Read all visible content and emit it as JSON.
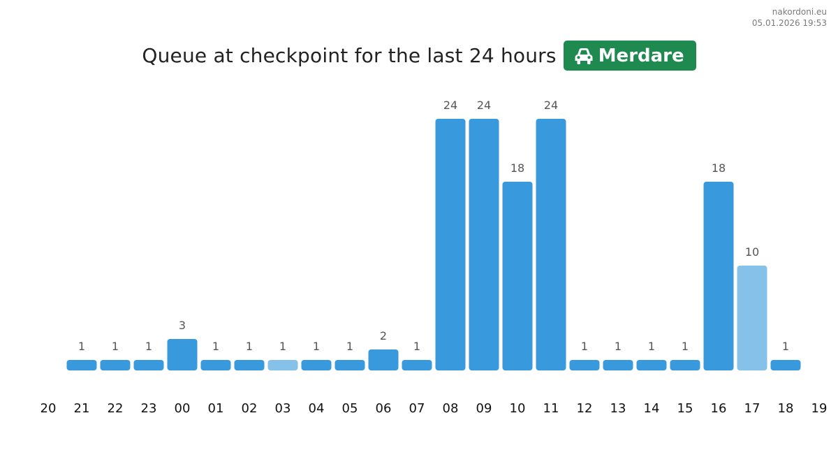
{
  "header": {
    "site": "nakordoni.eu",
    "datetime": "05.01.2026 19:53"
  },
  "title": {
    "text": "Queue at checkpoint for the last 24 hours",
    "badge_label": "Merdare",
    "badge_icon": "car-icon",
    "badge_color": "#1e8a4f"
  },
  "colors": {
    "bar": "#3899dc",
    "bar_highlight": "#86c1ea",
    "value_label": "#555555",
    "tick_label": "#111111"
  },
  "chart_data": {
    "type": "bar",
    "title": "Queue at checkpoint for the last 24 hours",
    "xlabel": "",
    "ylabel": "",
    "x_ticks": [
      "20",
      "21",
      "22",
      "23",
      "00",
      "01",
      "02",
      "03",
      "04",
      "05",
      "06",
      "07",
      "08",
      "09",
      "10",
      "11",
      "12",
      "13",
      "14",
      "15",
      "16",
      "17",
      "18",
      "19"
    ],
    "categories": [
      "21",
      "22",
      "23",
      "00",
      "01",
      "02",
      "03",
      "04",
      "05",
      "06",
      "07",
      "08",
      "09",
      "10",
      "11",
      "12",
      "13",
      "14",
      "15",
      "16",
      "17",
      "18"
    ],
    "values": [
      1,
      1,
      1,
      3,
      1,
      1,
      1,
      1,
      1,
      2,
      1,
      24,
      24,
      18,
      24,
      1,
      1,
      1,
      1,
      18,
      10,
      1
    ],
    "highlighted": [
      "03",
      "17"
    ],
    "ylim": [
      0,
      24
    ],
    "grid": false,
    "legend": "none"
  }
}
